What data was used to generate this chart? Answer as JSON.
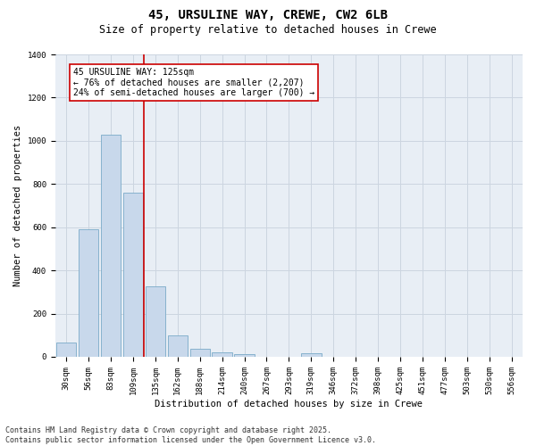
{
  "title1": "45, URSULINE WAY, CREWE, CW2 6LB",
  "title2": "Size of property relative to detached houses in Crewe",
  "xlabel": "Distribution of detached houses by size in Crewe",
  "ylabel": "Number of detached properties",
  "bar_color": "#c8d8eb",
  "bar_edgecolor": "#7aaac8",
  "bar_linewidth": 0.6,
  "categories": [
    "30sqm",
    "56sqm",
    "83sqm",
    "109sqm",
    "135sqm",
    "162sqm",
    "188sqm",
    "214sqm",
    "240sqm",
    "267sqm",
    "293sqm",
    "319sqm",
    "346sqm",
    "372sqm",
    "398sqm",
    "425sqm",
    "451sqm",
    "477sqm",
    "503sqm",
    "530sqm",
    "556sqm"
  ],
  "values": [
    65,
    590,
    1030,
    760,
    325,
    100,
    38,
    22,
    13,
    0,
    0,
    15,
    0,
    0,
    0,
    0,
    0,
    0,
    0,
    0,
    0
  ],
  "red_line_color": "#cc0000",
  "red_line_x": 3.5,
  "annotation_text": "45 URSULINE WAY: 125sqm\n← 76% of detached houses are smaller (2,207)\n24% of semi-detached houses are larger (700) →",
  "annotation_box_color": "#ffffff",
  "annotation_box_edgecolor": "#cc0000",
  "ylim": [
    0,
    1400
  ],
  "yticks": [
    0,
    200,
    400,
    600,
    800,
    1000,
    1200,
    1400
  ],
  "grid_color": "#ccd5e0",
  "background_color": "#e8eef5",
  "footer_text": "Contains HM Land Registry data © Crown copyright and database right 2025.\nContains public sector information licensed under the Open Government Licence v3.0.",
  "title1_fontsize": 10,
  "title2_fontsize": 8.5,
  "xlabel_fontsize": 7.5,
  "ylabel_fontsize": 7.5,
  "tick_fontsize": 6.5,
  "annotation_fontsize": 7,
  "footer_fontsize": 6
}
